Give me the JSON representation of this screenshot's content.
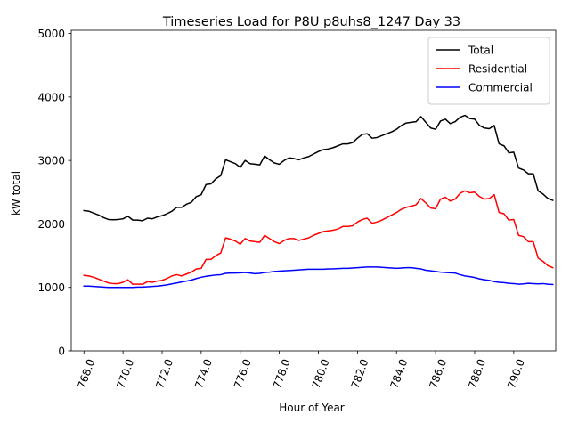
{
  "chart_data": {
    "type": "line",
    "title": "Timeseries Load for P8U p8uhs8_1247  Day 33",
    "xlabel": "Hour of Year",
    "ylabel": "kW total",
    "xlim": [
      767.35,
      792.15
    ],
    "ylim": [
      0,
      5050
    ],
    "x_ticks": [
      768.0,
      770.0,
      772.0,
      774.0,
      776.0,
      778.0,
      780.0,
      782.0,
      784.0,
      786.0,
      788.0,
      790.0
    ],
    "x_tick_labels": [
      "768.0",
      "770.0",
      "772.0",
      "774.0",
      "776.0",
      "778.0",
      "780.0",
      "782.0",
      "784.0",
      "786.0",
      "788.0",
      "790.0"
    ],
    "y_ticks": [
      0,
      1000,
      2000,
      3000,
      4000,
      5000
    ],
    "y_tick_labels": [
      "0",
      "1000",
      "2000",
      "3000",
      "4000",
      "5000"
    ],
    "legend_position": "top-right",
    "x_start": 768.0,
    "x_step": 0.25,
    "series": [
      {
        "name": "Total",
        "color": "#000000",
        "values": [
          2210,
          2200,
          2170,
          2140,
          2100,
          2070,
          2065,
          2070,
          2080,
          2120,
          2060,
          2060,
          2050,
          2090,
          2080,
          2110,
          2130,
          2160,
          2200,
          2260,
          2260,
          2310,
          2340,
          2430,
          2460,
          2620,
          2630,
          2710,
          2760,
          3010,
          2980,
          2950,
          2890,
          3000,
          2950,
          2940,
          2930,
          3070,
          3010,
          2960,
          2940,
          3000,
          3040,
          3030,
          3010,
          3040,
          3060,
          3100,
          3140,
          3170,
          3180,
          3200,
          3230,
          3260,
          3260,
          3280,
          3350,
          3410,
          3420,
          3350,
          3360,
          3390,
          3420,
          3450,
          3490,
          3550,
          3590,
          3600,
          3610,
          3690,
          3600,
          3510,
          3490,
          3620,
          3650,
          3580,
          3610,
          3680,
          3710,
          3660,
          3650,
          3550,
          3510,
          3500,
          3550,
          3260,
          3230,
          3120,
          3130,
          2880,
          2850,
          2790,
          2790,
          2520,
          2470,
          2400,
          2370
        ]
      },
      {
        "name": "Residential",
        "color": "#ff0000",
        "values": [
          1190,
          1180,
          1160,
          1130,
          1100,
          1070,
          1060,
          1060,
          1080,
          1120,
          1050,
          1050,
          1050,
          1090,
          1080,
          1100,
          1110,
          1140,
          1180,
          1200,
          1180,
          1210,
          1240,
          1290,
          1300,
          1440,
          1440,
          1500,
          1540,
          1780,
          1760,
          1730,
          1680,
          1770,
          1730,
          1720,
          1710,
          1820,
          1770,
          1720,
          1690,
          1740,
          1770,
          1770,
          1740,
          1760,
          1780,
          1820,
          1850,
          1880,
          1890,
          1900,
          1920,
          1960,
          1960,
          1970,
          2030,
          2070,
          2090,
          2010,
          2030,
          2060,
          2100,
          2140,
          2180,
          2230,
          2260,
          2280,
          2300,
          2400,
          2330,
          2250,
          2240,
          2390,
          2420,
          2360,
          2390,
          2480,
          2520,
          2490,
          2500,
          2430,
          2390,
          2400,
          2460,
          2180,
          2160,
          2060,
          2070,
          1820,
          1800,
          1720,
          1720,
          1460,
          1410,
          1340,
          1310
        ]
      },
      {
        "name": "Commercial",
        "color": "#0000ff",
        "values": [
          1020,
          1020,
          1015,
          1010,
          1005,
          1000,
          1000,
          1000,
          1000,
          1000,
          1000,
          1005,
          1005,
          1010,
          1015,
          1020,
          1030,
          1040,
          1055,
          1070,
          1085,
          1100,
          1115,
          1140,
          1160,
          1175,
          1185,
          1195,
          1200,
          1220,
          1225,
          1225,
          1230,
          1235,
          1225,
          1215,
          1220,
          1235,
          1240,
          1250,
          1255,
          1260,
          1265,
          1270,
          1275,
          1280,
          1285,
          1285,
          1285,
          1285,
          1290,
          1290,
          1295,
          1300,
          1300,
          1305,
          1310,
          1315,
          1320,
          1320,
          1320,
          1315,
          1310,
          1305,
          1300,
          1305,
          1310,
          1310,
          1300,
          1290,
          1270,
          1260,
          1250,
          1240,
          1235,
          1230,
          1225,
          1200,
          1180,
          1170,
          1155,
          1135,
          1120,
          1110,
          1090,
          1080,
          1075,
          1065,
          1060,
          1050,
          1055,
          1065,
          1060,
          1055,
          1060,
          1050,
          1045
        ]
      }
    ]
  }
}
